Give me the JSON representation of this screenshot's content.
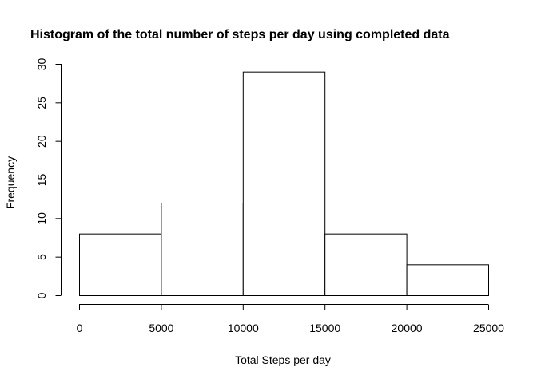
{
  "chart_data": {
    "type": "bar",
    "subtype": "histogram",
    "title": "Histogram of the total number of steps per day using completed data",
    "xlabel": "Total Steps per day",
    "ylabel": "Frequency",
    "bins": [
      {
        "start": 0,
        "end": 5000,
        "value": 8
      },
      {
        "start": 5000,
        "end": 10000,
        "value": 12
      },
      {
        "start": 10000,
        "end": 15000,
        "value": 29
      },
      {
        "start": 15000,
        "end": 20000,
        "value": 8
      },
      {
        "start": 20000,
        "end": 25000,
        "value": 4
      }
    ],
    "xlim": [
      0,
      25000
    ],
    "ylim": [
      0,
      30
    ],
    "xticks": [
      "0",
      "5000",
      "10000",
      "15000",
      "20000",
      "25000"
    ],
    "yticks": [
      "0",
      "5",
      "10",
      "15",
      "20",
      "25",
      "30"
    ],
    "grid": false,
    "colors": {
      "bar_fill": "#ffffff",
      "bar_stroke": "#000000"
    }
  }
}
